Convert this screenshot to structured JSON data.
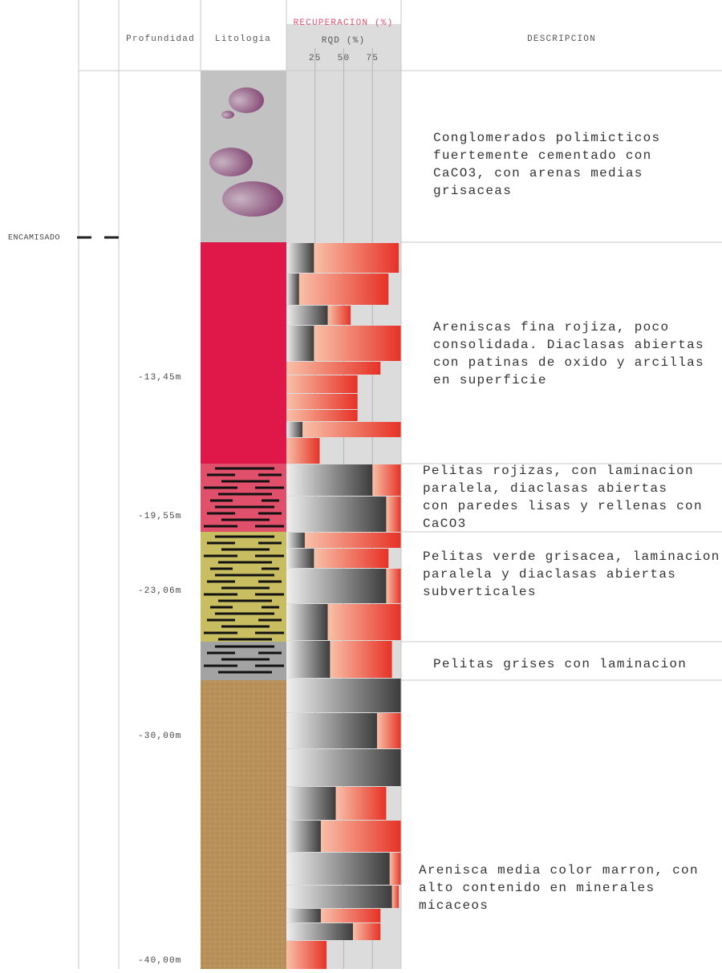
{
  "header": {
    "depth": "Profundidad",
    "lithology": "Litologia",
    "recovery": "RECUPERACION (%)",
    "rqd": "RQD (%)",
    "description": "DESCRIPCION"
  },
  "casing_label": "ENCAMISADO",
  "depth_labels": [
    "-13,45m",
    "-19,55m",
    "-23,06m",
    "-30,00m",
    "-40,00m"
  ],
  "scale": {
    "xlim": [
      0,
      100
    ],
    "xticks": [
      25,
      50,
      75
    ]
  },
  "layers": [
    {
      "color": "#c2c2c2",
      "description": [
        "Conglomerados polimicticos",
        "fuertemente cementado con",
        "CaCO3, con arenas medias",
        "grisaceas"
      ]
    },
    {
      "color": "#e0184a",
      "description": [
        "Areniscas fina rojiza, poco",
        "consolidada. Diaclasas abiertas",
        "con patinas de oxido y arcillas",
        "en superficie"
      ]
    },
    {
      "color": "#e0506a",
      "description": [
        "Pelitas rojizas, con laminacion",
        "paralela, diaclasas abiertas",
        "con paredes lisas y rellenas con",
        "CaCO3"
      ]
    },
    {
      "color": "#c9bd62",
      "description": [
        "Pelitas verde grisacea, laminacion",
        "paralela y diaclasas abiertas",
        "subverticales"
      ]
    },
    {
      "color": "#a3a3a3",
      "description": [
        "Pelitas grises con laminacion"
      ]
    },
    {
      "color": "#b8915a",
      "description": [
        "Arenisca media color marron, con",
        "alto  contenido  en  minerales",
        "micaceos"
      ]
    }
  ],
  "intervals": [
    {
      "rqd": 24,
      "recovery": 98
    },
    {
      "rqd": 11,
      "recovery": 89
    },
    {
      "rqd": 36,
      "recovery": 56
    },
    {
      "rqd": 24,
      "recovery": 100
    },
    {
      "rqd": 0,
      "recovery": 82
    },
    {
      "rqd": 0,
      "recovery": 62
    },
    {
      "rqd": 0,
      "recovery": 62
    },
    {
      "rqd": 0,
      "recovery": 62
    },
    {
      "rqd": 14,
      "recovery": 100
    },
    {
      "rqd": 0,
      "recovery": 29
    },
    {
      "rqd": 75,
      "recovery": 100
    },
    {
      "rqd": 87,
      "recovery": 100
    },
    {
      "rqd": 16,
      "recovery": 100
    },
    {
      "rqd": 24,
      "recovery": 89
    },
    {
      "rqd": 87,
      "recovery": 100
    },
    {
      "rqd": 36,
      "recovery": 100
    },
    {
      "rqd": 38,
      "recovery": 92
    },
    {
      "rqd": 100,
      "recovery": 100
    },
    {
      "rqd": 79,
      "recovery": 100
    },
    {
      "rqd": 100,
      "recovery": 100
    },
    {
      "rqd": 43,
      "recovery": 87
    },
    {
      "rqd": 30,
      "recovery": 100
    },
    {
      "rqd": 90,
      "recovery": 100
    },
    {
      "rqd": 92,
      "recovery": 98
    },
    {
      "rqd": 30,
      "recovery": 82
    },
    {
      "rqd": 58,
      "recovery": 82
    },
    {
      "rqd": 0,
      "recovery": 35
    }
  ]
}
